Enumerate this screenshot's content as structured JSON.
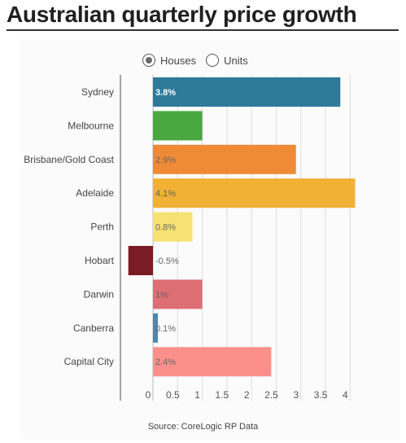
{
  "title": "Australian quarterly price growth",
  "legend": {
    "houses_label": "Houses",
    "units_label": "Units",
    "selected": "Houses"
  },
  "source": "Source: CoreLogic RP Data",
  "chart_data": {
    "type": "bar",
    "orientation": "horizontal",
    "categories": [
      "Sydney",
      "Melbourne",
      "Brisbane/Gold Coast",
      "Adelaide",
      "Perth",
      "Hobart",
      "Darwin",
      "Canberra",
      "Capital City"
    ],
    "values": [
      3.8,
      1,
      2.9,
      4.1,
      0.8,
      -0.5,
      1,
      0.1,
      2.4
    ],
    "data_labels": [
      "3.8%",
      "",
      "2.9%",
      "4.1%",
      "0.8%",
      "-0.5%",
      "1%",
      "0.1%",
      "2.4%"
    ],
    "colors": [
      "#2e7a99",
      "#49a83f",
      "#ef8a35",
      "#f0b134",
      "#f6e173",
      "#7b1c25",
      "#dd6e74",
      "#4a89ad",
      "#fb908b"
    ],
    "xticks": [
      0,
      0.5,
      1,
      1.5,
      2,
      2.5,
      3,
      3.5,
      4
    ],
    "xtick_labels": [
      "0",
      "0.5",
      "1",
      "1.5",
      "2",
      "2.5",
      "3",
      "3.5",
      "4"
    ],
    "xlim": [
      -0.5,
      4.1
    ],
    "grid": true
  }
}
